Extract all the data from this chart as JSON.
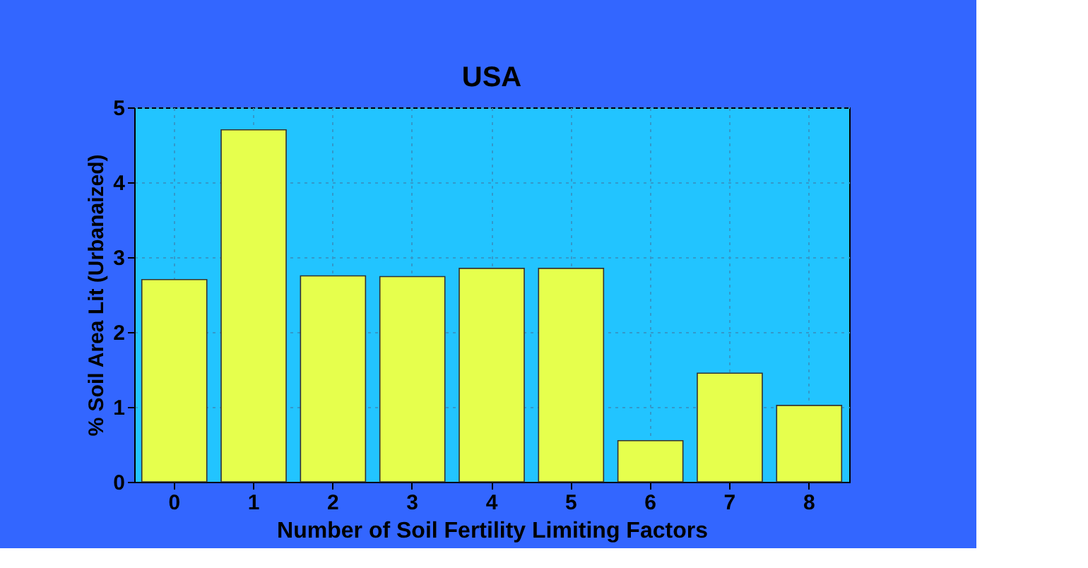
{
  "chart_data": {
    "type": "bar",
    "title": "USA",
    "xlabel": "Number of Soil Fertility Limiting Factors",
    "ylabel": "% Soil Area Lit (Urbanaized)",
    "categories": [
      "0",
      "1",
      "2",
      "3",
      "4",
      "5",
      "6",
      "7",
      "8"
    ],
    "values": [
      2.7,
      4.7,
      2.75,
      2.74,
      2.85,
      2.85,
      0.55,
      1.45,
      1.02
    ],
    "color": "#e6ff4d",
    "ylim": [
      0,
      5
    ],
    "yticks": [
      0,
      1,
      2,
      3,
      4,
      5
    ],
    "grid": true
  }
}
